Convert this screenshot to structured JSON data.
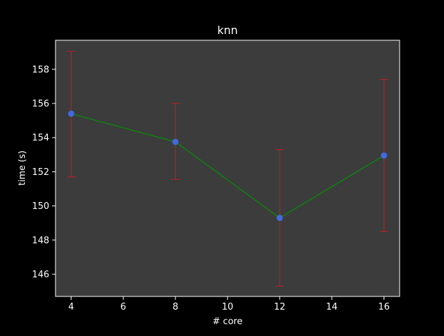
{
  "chart_data": {
    "type": "line",
    "title": "knn",
    "xlabel": "# core",
    "ylabel": "time (s)",
    "xlim": [
      3.4,
      16.6
    ],
    "ylim": [
      144.7,
      159.7
    ],
    "xticks": [
      4,
      6,
      8,
      10,
      12,
      14,
      16
    ],
    "yticks": [
      146,
      148,
      150,
      152,
      154,
      156,
      158
    ],
    "grid": false,
    "series": [
      {
        "x": [
          4,
          8,
          12,
          16
        ],
        "y": [
          155.4,
          153.75,
          149.3,
          152.95
        ],
        "error_low": [
          151.7,
          151.55,
          145.3,
          148.5
        ],
        "error_high": [
          159.05,
          156.0,
          153.3,
          157.4
        ]
      }
    ],
    "colors": {
      "figure_background": "#000000",
      "plot_background": "#3c3c3c",
      "axes_edge": "#ffffff",
      "text": "#ffffff",
      "line": "#118011",
      "marker": "#4169e1",
      "errorbar": "#b22222"
    }
  }
}
